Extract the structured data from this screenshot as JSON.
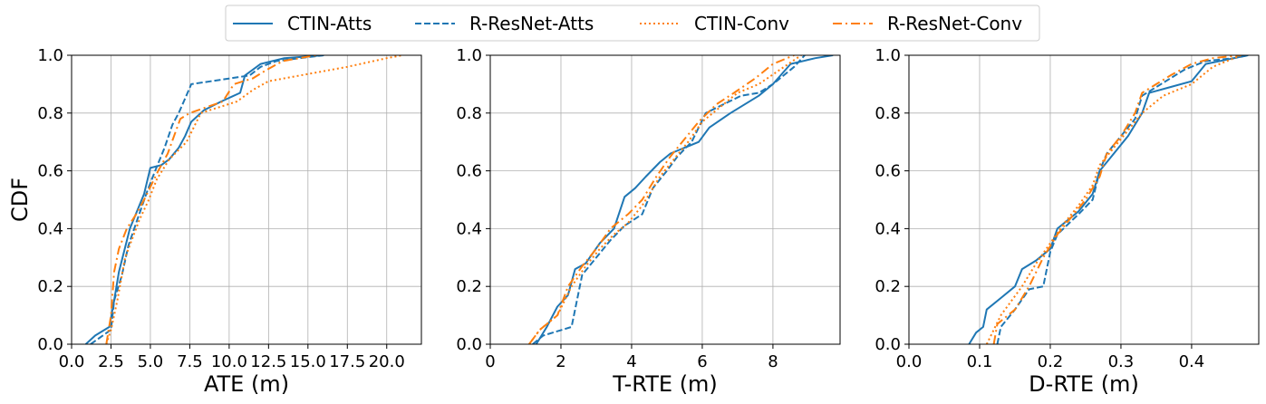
{
  "legend": {
    "placement": "top-center",
    "entries": [
      {
        "label": "CTIN-Atts",
        "color": "#1f77b4",
        "style": "solid"
      },
      {
        "label": "R-ResNet-Atts",
        "color": "#1f77b4",
        "style": "dashed"
      },
      {
        "label": "CTIN-Conv",
        "color": "#ff7f0e",
        "style": "dotted"
      },
      {
        "label": "R-ResNet-Conv",
        "color": "#ff7f0e",
        "style": "dashdot"
      }
    ]
  },
  "chart_data": [
    {
      "type": "line",
      "xlabel": "ATE (m)",
      "ylabel": "CDF",
      "xlim": [
        0,
        22.2
      ],
      "ylim": [
        0,
        1
      ],
      "xticks": [
        "0.0",
        "2.5",
        "5.0",
        "7.5",
        "10.0",
        "12.5",
        "15.0",
        "17.5",
        "20.0"
      ],
      "xtick_values": [
        0,
        2.5,
        5,
        7.5,
        10,
        12.5,
        15,
        17.5,
        20
      ],
      "yticks": [
        "0.0",
        "0.2",
        "0.4",
        "0.6",
        "0.8",
        "1.0"
      ],
      "grid": true,
      "series": [
        {
          "name": "CTIN-Atts",
          "x": [
            0.9,
            1.5,
            2.4,
            2.7,
            3.0,
            3.7,
            4.6,
            5.0,
            5.7,
            6.2,
            6.8,
            7.2,
            7.6,
            8.4,
            9.5,
            10.7,
            11.0,
            12.0,
            13.5,
            16.0
          ],
          "y": [
            0.0,
            0.03,
            0.06,
            0.15,
            0.25,
            0.4,
            0.52,
            0.61,
            0.62,
            0.64,
            0.68,
            0.72,
            0.77,
            0.81,
            0.84,
            0.87,
            0.93,
            0.97,
            0.99,
            1.0
          ]
        },
        {
          "name": "R-ResNet-Atts",
          "x": [
            1.2,
            2.5,
            2.7,
            3.2,
            3.6,
            4.1,
            4.8,
            5.3,
            5.9,
            6.4,
            6.8,
            7.2,
            7.6,
            11.3,
            12.0,
            13.0,
            14.5,
            16.0
          ],
          "y": [
            0.0,
            0.05,
            0.15,
            0.24,
            0.34,
            0.42,
            0.53,
            0.6,
            0.68,
            0.76,
            0.8,
            0.85,
            0.9,
            0.93,
            0.96,
            0.98,
            0.99,
            1.0
          ]
        },
        {
          "name": "CTIN-Conv",
          "x": [
            2.2,
            2.5,
            2.9,
            3.4,
            4.3,
            4.9,
            5.4,
            6.2,
            7.3,
            8.2,
            10.5,
            11.5,
            12.5,
            14.5,
            17.5,
            20.0,
            21.0
          ],
          "y": [
            0.0,
            0.05,
            0.15,
            0.3,
            0.43,
            0.5,
            0.57,
            0.64,
            0.7,
            0.8,
            0.84,
            0.88,
            0.91,
            0.93,
            0.96,
            0.99,
            1.0
          ]
        },
        {
          "name": "R-ResNet-Conv",
          "x": [
            2.2,
            2.5,
            2.7,
            3.0,
            3.5,
            4.1,
            4.6,
            5.5,
            6.1,
            6.5,
            6.9,
            7.5,
            9.6,
            10.3,
            11.5,
            12.4,
            13.4,
            15.5
          ],
          "y": [
            0.0,
            0.1,
            0.25,
            0.33,
            0.4,
            0.45,
            0.5,
            0.6,
            0.66,
            0.72,
            0.78,
            0.8,
            0.84,
            0.9,
            0.92,
            0.95,
            0.98,
            1.0
          ]
        }
      ]
    },
    {
      "type": "line",
      "xlabel": "T-RTE (m)",
      "ylabel": "",
      "xlim": [
        0,
        9.9
      ],
      "ylim": [
        0,
        1
      ],
      "xticks": [
        "0",
        "2",
        "4",
        "6",
        "8"
      ],
      "xtick_values": [
        0,
        2,
        4,
        6,
        8
      ],
      "yticks": [
        "0.0",
        "0.2",
        "0.4",
        "0.6",
        "0.8",
        "1.0"
      ],
      "grid": true,
      "series": [
        {
          "name": "CTIN-Atts",
          "x": [
            1.3,
            1.6,
            1.9,
            2.2,
            2.4,
            2.7,
            3.1,
            3.5,
            3.8,
            4.1,
            4.4,
            4.8,
            5.1,
            5.5,
            5.9,
            6.2,
            6.8,
            7.6,
            8.0,
            8.5,
            9.2,
            9.7
          ],
          "y": [
            0.0,
            0.06,
            0.13,
            0.17,
            0.26,
            0.28,
            0.35,
            0.4,
            0.51,
            0.54,
            0.58,
            0.63,
            0.66,
            0.68,
            0.7,
            0.75,
            0.8,
            0.86,
            0.9,
            0.97,
            0.99,
            1.0
          ]
        },
        {
          "name": "R-ResNet-Atts",
          "x": [
            1.2,
            1.5,
            2.3,
            2.6,
            3.0,
            3.4,
            3.8,
            4.3,
            4.6,
            5.0,
            5.3,
            5.7,
            6.1,
            6.6,
            7.1,
            7.6,
            8.0,
            8.6,
            8.9
          ],
          "y": [
            0.0,
            0.03,
            0.06,
            0.24,
            0.3,
            0.36,
            0.41,
            0.45,
            0.54,
            0.6,
            0.65,
            0.7,
            0.8,
            0.83,
            0.86,
            0.87,
            0.9,
            0.96,
            1.0
          ]
        },
        {
          "name": "CTIN-Conv",
          "x": [
            1.1,
            1.4,
            1.9,
            2.3,
            2.7,
            3.1,
            3.5,
            3.9,
            4.3,
            4.8,
            5.2,
            5.6,
            6.0,
            6.5,
            7.0,
            7.6,
            8.2,
            8.8
          ],
          "y": [
            0.0,
            0.05,
            0.1,
            0.2,
            0.27,
            0.33,
            0.38,
            0.42,
            0.48,
            0.58,
            0.64,
            0.7,
            0.77,
            0.82,
            0.87,
            0.9,
            0.95,
            1.0
          ]
        },
        {
          "name": "R-ResNet-Conv",
          "x": [
            1.1,
            1.4,
            1.9,
            2.2,
            2.6,
            3.0,
            3.4,
            3.9,
            4.3,
            4.7,
            5.1,
            5.5,
            5.9,
            6.4,
            6.9,
            7.5,
            8.0,
            8.6
          ],
          "y": [
            0.0,
            0.05,
            0.1,
            0.2,
            0.27,
            0.33,
            0.4,
            0.45,
            0.5,
            0.58,
            0.65,
            0.71,
            0.77,
            0.83,
            0.87,
            0.92,
            0.97,
            1.0
          ]
        }
      ]
    },
    {
      "type": "line",
      "xlabel": "D-RTE (m)",
      "ylabel": "",
      "xlim": [
        0,
        0.495
      ],
      "ylim": [
        0,
        1
      ],
      "xticks": [
        "0.0",
        "0.1",
        "0.2",
        "0.3",
        "0.4"
      ],
      "xtick_values": [
        0,
        0.1,
        0.2,
        0.3,
        0.4
      ],
      "yticks": [
        "0.0",
        "0.2",
        "0.4",
        "0.6",
        "0.8",
        "1.0"
      ],
      "grid": true,
      "series": [
        {
          "name": "CTIN-Atts",
          "x": [
            0.085,
            0.095,
            0.105,
            0.11,
            0.13,
            0.15,
            0.16,
            0.18,
            0.2,
            0.21,
            0.24,
            0.26,
            0.27,
            0.29,
            0.31,
            0.33,
            0.34,
            0.37,
            0.4,
            0.42,
            0.46,
            0.48
          ],
          "y": [
            0.0,
            0.04,
            0.06,
            0.12,
            0.16,
            0.2,
            0.26,
            0.29,
            0.33,
            0.4,
            0.46,
            0.52,
            0.6,
            0.66,
            0.72,
            0.8,
            0.87,
            0.89,
            0.91,
            0.97,
            0.99,
            1.0
          ]
        },
        {
          "name": "R-ResNet-Atts",
          "x": [
            0.125,
            0.13,
            0.15,
            0.17,
            0.19,
            0.2,
            0.21,
            0.24,
            0.26,
            0.27,
            0.28,
            0.3,
            0.32,
            0.33,
            0.35,
            0.39,
            0.42,
            0.46,
            0.48
          ],
          "y": [
            0.0,
            0.06,
            0.12,
            0.19,
            0.2,
            0.32,
            0.38,
            0.45,
            0.5,
            0.6,
            0.66,
            0.72,
            0.78,
            0.86,
            0.89,
            0.95,
            0.98,
            0.99,
            1.0
          ]
        },
        {
          "name": "CTIN-Conv",
          "x": [
            0.11,
            0.13,
            0.16,
            0.18,
            0.2,
            0.22,
            0.24,
            0.26,
            0.27,
            0.29,
            0.31,
            0.33,
            0.36,
            0.4,
            0.43,
            0.47
          ],
          "y": [
            0.0,
            0.1,
            0.2,
            0.28,
            0.35,
            0.42,
            0.48,
            0.55,
            0.62,
            0.68,
            0.74,
            0.8,
            0.86,
            0.9,
            0.96,
            1.0
          ]
        },
        {
          "name": "R-ResNet-Conv",
          "x": [
            0.12,
            0.125,
            0.15,
            0.17,
            0.19,
            0.21,
            0.23,
            0.25,
            0.27,
            0.28,
            0.3,
            0.32,
            0.33,
            0.35,
            0.37,
            0.4,
            0.43,
            0.47
          ],
          "y": [
            0.0,
            0.07,
            0.12,
            0.2,
            0.3,
            0.38,
            0.44,
            0.5,
            0.58,
            0.66,
            0.72,
            0.8,
            0.87,
            0.9,
            0.93,
            0.97,
            0.99,
            1.0
          ]
        }
      ]
    }
  ]
}
